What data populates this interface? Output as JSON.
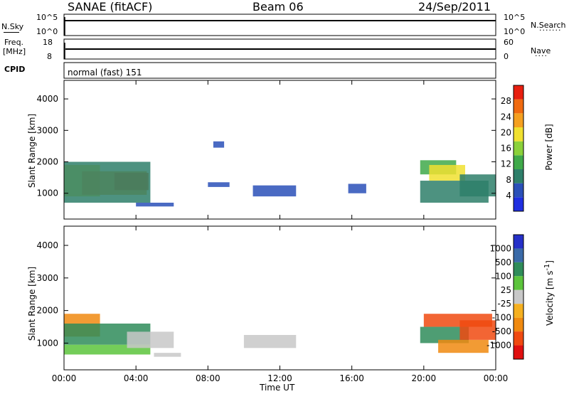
{
  "header": {
    "station": "SANAE (fitACF)",
    "beam": "Beam 06",
    "date": "24/Sep/2011"
  },
  "strip_labels": {
    "nsky": "N.Sky",
    "nsky_top": "10^5",
    "nsky_bottom": "10^0",
    "freq_line1": "Freq.",
    "freq_line2": "[MHz]",
    "freq_top": "18",
    "freq_bottom": "8",
    "cpid": "CPID",
    "nsearch": "N.Search",
    "nsearch_top": "10^5",
    "nsearch_bottom": "10^0",
    "nave": "Nave",
    "nave_top": "60",
    "nave_bottom": "0",
    "cpid_value": "normal (fast) 151"
  },
  "colors": {
    "power_scale": [
      "#1f2fe0",
      "#2a50b8",
      "#2e7f6a",
      "#3fa94a",
      "#8bd13a",
      "#f0e030",
      "#f5a020",
      "#f06a10",
      "#e81f10"
    ],
    "velocity_scale": [
      "#2530c8",
      "#3a6aa8",
      "#2f8c5a",
      "#5cc43c",
      "#c8c8c8",
      "#f5b020",
      "#f08a10",
      "#f04a10",
      "#e01010"
    ]
  },
  "chart_data": [
    {
      "type": "heatmap",
      "panel": "power",
      "ylabel": "Slant Range [km]",
      "yticks": [
        "1000",
        "2000",
        "3000",
        "4000"
      ],
      "ylim": [
        180,
        4590
      ],
      "colorbar_label": "Power [dB]",
      "colorbar_ticks": [
        "4",
        "8",
        "12",
        "16",
        "20",
        "24",
        "28"
      ],
      "colorbar_range": [
        0,
        32
      ],
      "patches": [
        {
          "t0": 0.0,
          "t1": 2.0,
          "r0": 900,
          "r1": 1900,
          "value": 20
        },
        {
          "t0": 1.0,
          "t1": 4.6,
          "r0": 950,
          "r1": 1700,
          "value": 24
        },
        {
          "t0": 2.8,
          "t1": 4.7,
          "r0": 1100,
          "r1": 1650,
          "value": 26
        },
        {
          "t0": 0.0,
          "t1": 4.8,
          "r0": 700,
          "r1": 2000,
          "value": 8
        },
        {
          "t0": 4.0,
          "t1": 6.1,
          "r0": 580,
          "r1": 700,
          "value": 6
        },
        {
          "t0": 8.3,
          "t1": 8.9,
          "r0": 2450,
          "r1": 2650,
          "value": 5
        },
        {
          "t0": 8.0,
          "t1": 9.2,
          "r0": 1200,
          "r1": 1350,
          "value": 5
        },
        {
          "t0": 10.5,
          "t1": 12.9,
          "r0": 900,
          "r1": 1250,
          "value": 6
        },
        {
          "t0": 15.8,
          "t1": 16.8,
          "r0": 1000,
          "r1": 1300,
          "value": 5
        },
        {
          "t0": 19.8,
          "t1": 21.8,
          "r0": 1600,
          "r1": 2050,
          "value": 12
        },
        {
          "t0": 20.3,
          "t1": 22.3,
          "r0": 1400,
          "r1": 1900,
          "value": 18
        },
        {
          "t0": 19.8,
          "t1": 23.6,
          "r0": 700,
          "r1": 1400,
          "value": 10
        },
        {
          "t0": 22.0,
          "t1": 24.0,
          "r0": 900,
          "r1": 1600,
          "value": 8
        }
      ]
    },
    {
      "type": "heatmap",
      "panel": "velocity",
      "ylabel": "Slant Range [km]",
      "xlabel": "Time UT",
      "xticks": [
        "00:00",
        "04:00",
        "08:00",
        "12:00",
        "16:00",
        "20:00",
        "00:00"
      ],
      "xlim_hours": [
        0,
        24
      ],
      "yticks": [
        "1000",
        "2000",
        "3000",
        "4000"
      ],
      "ylim": [
        180,
        4590
      ],
      "colorbar_label": "Velocity [m s^-1]",
      "colorbar_ticks": [
        "1000",
        "500",
        "100",
        "25",
        "-25",
        "-100",
        "-500",
        "-1000"
      ],
      "patches": [
        {
          "t0": 0.0,
          "t1": 2.0,
          "r0": 1200,
          "r1": 1900,
          "value": -300
        },
        {
          "t0": 0.0,
          "t1": 4.8,
          "r0": 950,
          "r1": 1600,
          "value": 150
        },
        {
          "t0": 0.0,
          "t1": 4.8,
          "r0": 650,
          "r1": 950,
          "value": 60
        },
        {
          "t0": 3.5,
          "t1": 6.1,
          "r0": 850,
          "r1": 1350,
          "value": 0
        },
        {
          "t0": 5.0,
          "t1": 6.5,
          "r0": 580,
          "r1": 700,
          "value": 0
        },
        {
          "t0": 10.0,
          "t1": 12.9,
          "r0": 850,
          "r1": 1250,
          "value": 0
        },
        {
          "t0": 20.0,
          "t1": 23.8,
          "r0": 1500,
          "r1": 1900,
          "value": -700
        },
        {
          "t0": 19.8,
          "t1": 22.5,
          "r0": 1000,
          "r1": 1500,
          "value": 200
        },
        {
          "t0": 20.8,
          "t1": 23.6,
          "r0": 700,
          "r1": 1100,
          "value": -150
        },
        {
          "t0": 22.0,
          "t1": 24.0,
          "r0": 1100,
          "r1": 1700,
          "value": -600
        }
      ]
    }
  ]
}
